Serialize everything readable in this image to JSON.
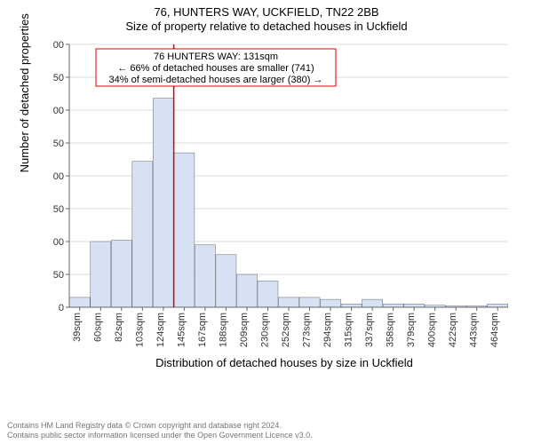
{
  "address": "76, HUNTERS WAY, UCKFIELD, TN22 2BB",
  "subtitle": "Size of property relative to detached houses in Uckfield",
  "ylabel": "Number of detached properties",
  "xlabel": "Distribution of detached houses by size in Uckfield",
  "chart": {
    "type": "histogram",
    "bar_fill": "#d6e2f3",
    "bar_stroke": "#666666",
    "background": "#ffffff",
    "axis_color": "#666666",
    "grid_color": "#bbbbbb",
    "marker_color": "#d40000",
    "ylim": [
      0,
      400
    ],
    "ytick_step": 50,
    "categories": [
      "39sqm",
      "60sqm",
      "82sqm",
      "103sqm",
      "124sqm",
      "145sqm",
      "167sqm",
      "188sqm",
      "209sqm",
      "230sqm",
      "252sqm",
      "273sqm",
      "294sqm",
      "315sqm",
      "337sqm",
      "358sqm",
      "379sqm",
      "400sqm",
      "422sqm",
      "443sqm",
      "464sqm"
    ],
    "values": [
      15,
      100,
      102,
      222,
      318,
      235,
      95,
      80,
      50,
      40,
      15,
      15,
      12,
      5,
      12,
      5,
      5,
      3,
      2,
      2,
      5
    ],
    "marker_index": 5,
    "label_fontsize": 11,
    "axis_title_fontsize": 13,
    "title_fontsize": 13
  },
  "annotation": {
    "line1": "76 HUNTERS WAY: 131sqm",
    "line2": "← 66% of detached houses are smaller (741)",
    "line3": "34% of semi-detached houses are larger (380) →",
    "box_stroke": "#d40000",
    "text_color": "#000000"
  },
  "footer_line1": "Contains HM Land Registry data © Crown copyright and database right 2024.",
  "footer_line2": "Contains public sector information licensed under the Open Government Licence v3.0."
}
